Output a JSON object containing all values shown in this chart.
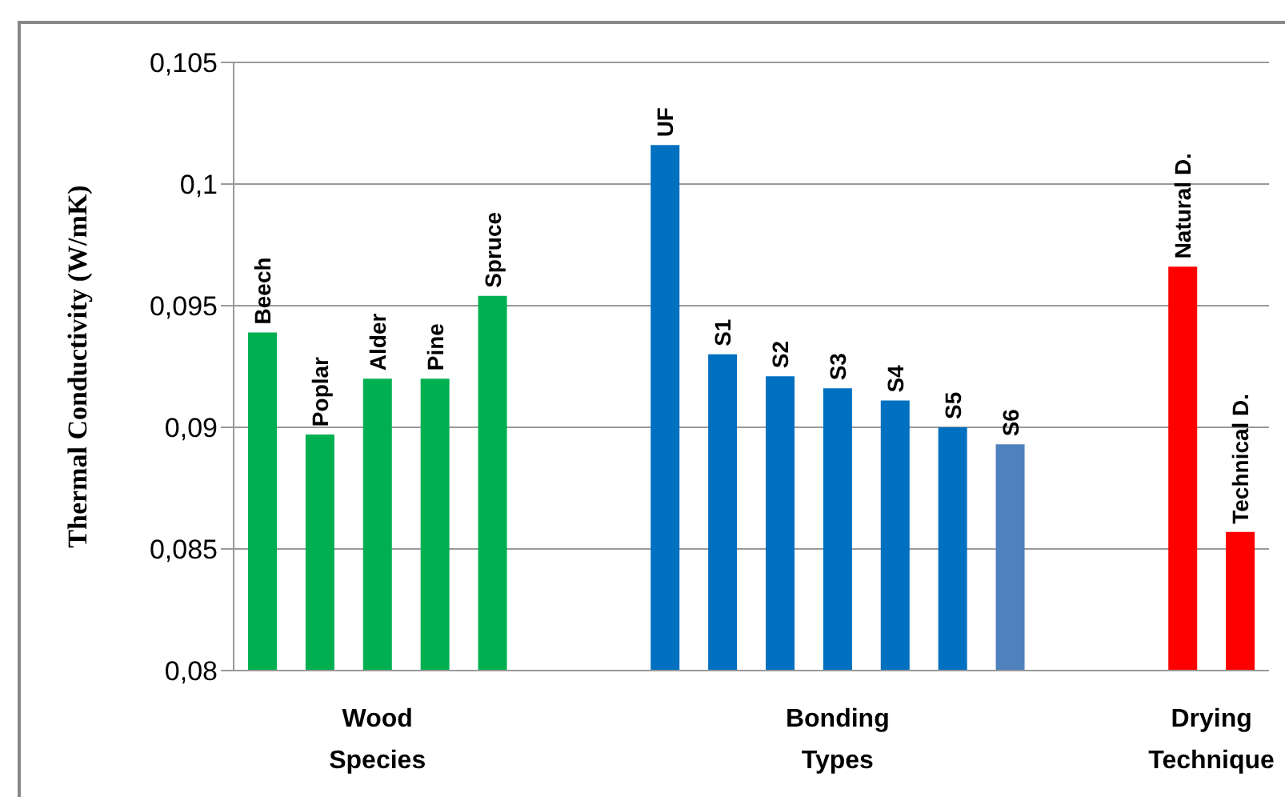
{
  "chart_data": {
    "type": "bar",
    "ylabel": "Thermal Conductivity (W/mK)",
    "categories": [
      "Beech",
      "Poplar",
      "Alder",
      "Pine",
      "Spruce",
      null,
      null,
      "UF",
      "S1",
      "S2",
      "S3",
      "S4",
      "S5",
      "S6",
      null,
      null,
      "Natural D.",
      "Technical D."
    ],
    "values": [
      0.0939,
      0.0897,
      0.092,
      0.092,
      0.0954,
      null,
      null,
      0.1016,
      0.093,
      0.0921,
      0.0916,
      0.0911,
      0.09,
      0.0893,
      null,
      null,
      0.0966,
      0.0857
    ],
    "colors": [
      "#00b050",
      "#00b050",
      "#00b050",
      "#00b050",
      "#00b050",
      null,
      null,
      "#0070c0",
      "#0070c0",
      "#0070c0",
      "#0070c0",
      "#0070c0",
      "#0070c0",
      "#4f81bd",
      null,
      null,
      "#ff0000",
      "#ff0000"
    ],
    "annotations": [
      "Wood Species",
      "Bonding Types",
      "Drying Technique"
    ],
    "ylim": [
      0.08,
      0.105
    ],
    "yticks": [
      {
        "value": 0.08,
        "label": "0,08"
      },
      {
        "value": 0.085,
        "label": "0,085"
      },
      {
        "value": 0.09,
        "label": "0,09"
      },
      {
        "value": 0.095,
        "label": "0,095"
      },
      {
        "value": 0.1,
        "label": "0,1"
      },
      {
        "value": 0.105,
        "label": "0,105"
      }
    ],
    "grid": "y",
    "legend": false
  }
}
